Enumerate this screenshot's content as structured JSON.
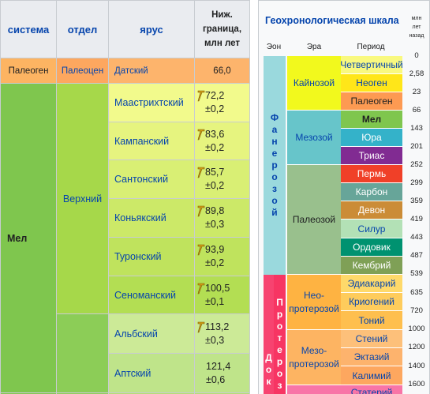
{
  "left_table": {
    "headers": {
      "system": "система",
      "series": "отдел",
      "stage": "ярус",
      "lower_bound": [
        "Ниж.",
        "граница,",
        "млн лет"
      ]
    },
    "paleogene_row": {
      "system": "Палеоген",
      "series": "Палеоцен",
      "stage": "Датский",
      "value": "66,0"
    },
    "mel": {
      "system": "Мел",
      "upper_series": "Верхний",
      "upper_stages": [
        {
          "name": "Маастрихтский",
          "value": "72,2",
          "error": "±0,2"
        },
        {
          "name": "Кампанский",
          "value": "83,6",
          "error": "±0,2"
        },
        {
          "name": "Сантонский",
          "value": "85,7",
          "error": "±0,2"
        },
        {
          "name": "Коньякский",
          "value": "89,8",
          "error": "±0,3"
        },
        {
          "name": "Туронский",
          "value": "93,9",
          "error": "±0,2"
        },
        {
          "name": "Сеноманский",
          "value": "100,5",
          "error": "±0,1"
        }
      ],
      "lower_stages": [
        {
          "name": "Альбский",
          "value": "113,2",
          "error": "±0,3"
        },
        {
          "name": "Аптский",
          "value": "121,4",
          "error": "±0,6"
        }
      ]
    },
    "colors": {
      "paleogene": "#fdb462",
      "paleocene": "#fda75f",
      "danian": "#fdb46c",
      "mel": "#7fc64e",
      "upper": "#a6d84a",
      "lower": "#8ccd57",
      "upper_stages": [
        "#f2fa8c",
        "#e6f47f",
        "#d9ef74",
        "#cce968",
        "#bfe35d",
        "#b3de53"
      ],
      "lower_stages": [
        "#ccea97",
        "#bfe48a"
      ]
    }
  },
  "geochron": {
    "title": "Геохронологическая шкала",
    "age_header": [
      "млн",
      "лет",
      "назад"
    ],
    "col_headers": {
      "eon": "Эон",
      "era": "Эра",
      "period": "Период"
    },
    "eons": [
      {
        "name": "Фанерозой",
        "letters": [
          "Ф",
          "а",
          "н",
          "е",
          "р",
          "о",
          "з",
          "о",
          "й"
        ],
        "color": "#9ad9dd"
      },
      {
        "name": "Протерозой",
        "letters": [
          "П",
          "р",
          "о",
          "т",
          "е",
          "р",
          "о",
          "з"
        ],
        "color": "#f73563"
      },
      {
        "name": "Докембрий",
        "letters": [
          "Д",
          "о",
          "к"
        ],
        "color": "#f74370"
      }
    ],
    "eras": [
      {
        "name": "Кайнозой",
        "color": "#f2f91d"
      },
      {
        "name": "Мезозой",
        "color": "#67c5ca"
      },
      {
        "name": "Палеозой",
        "color": "#99c08d"
      },
      {
        "name": "Нео-протерозой",
        "lines": [
          "Нео-",
          "протерозой"
        ],
        "color": "#feb342"
      },
      {
        "name": "Мезо-протерозой",
        "lines": [
          "Мезо-",
          "протерозой"
        ],
        "color": "#fdb462"
      }
    ],
    "periods": [
      {
        "name": "Четвертичный",
        "color": "#f9f97f"
      },
      {
        "name": "Неоген",
        "color": "#ffe619"
      },
      {
        "name": "Палеоген",
        "color": "#fd9a52"
      },
      {
        "name": "Мел",
        "color": "#7fc64e"
      },
      {
        "name": "Юра",
        "color": "#34b2c9"
      },
      {
        "name": "Триас",
        "color": "#812b92"
      },
      {
        "name": "Пермь",
        "color": "#f04028"
      },
      {
        "name": "Карбон",
        "color": "#67a599"
      },
      {
        "name": "Девон",
        "color": "#cb8c37"
      },
      {
        "name": "Силур",
        "color": "#b3e1b6"
      },
      {
        "name": "Ордовик",
        "color": "#009270"
      },
      {
        "name": "Кембрий",
        "color": "#7fa056"
      },
      {
        "name": "Эдиакарий",
        "color": "#fed96a"
      },
      {
        "name": "Криогений",
        "color": "#fecc5c"
      },
      {
        "name": "Тоний",
        "color": "#febf4e"
      },
      {
        "name": "Стений",
        "color": "#fdc07a"
      },
      {
        "name": "Эктазий",
        "color": "#fdb36d"
      },
      {
        "name": "Калимий",
        "color": "#fda75f"
      },
      {
        "name": "Статерий",
        "color": "#f875a7"
      }
    ],
    "ages": [
      "0",
      "2,58",
      "23",
      "66",
      "143",
      "201",
      "252",
      "299",
      "359",
      "419",
      "443",
      "487",
      "539",
      "635",
      "720",
      "1000",
      "1200",
      "1400",
      "1600"
    ]
  }
}
